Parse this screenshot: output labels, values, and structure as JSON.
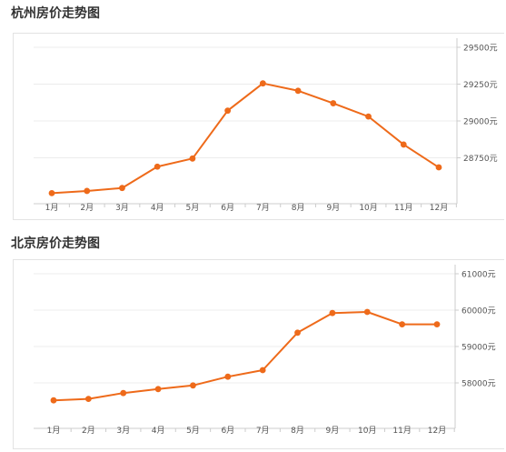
{
  "colors": {
    "line": "#ee6a1a",
    "grid": "#ececec",
    "axis": "#cccccc",
    "tick": "#555555",
    "heading": "#333333"
  },
  "chart_data": [
    {
      "type": "line",
      "title": "杭州房价走势图",
      "categories": [
        "1月",
        "2月",
        "3月",
        "4月",
        "5月",
        "6月",
        "7月",
        "8月",
        "9月",
        "10月",
        "11月",
        "12月"
      ],
      "series": [
        {
          "values": [
            28510,
            28525,
            28545,
            28690,
            28745,
            29070,
            29255,
            29205,
            29120,
            29030,
            28840,
            28685
          ]
        }
      ],
      "yticks": [
        28750,
        29000,
        29250,
        29500
      ],
      "ytick_labels": [
        "28750元",
        "29000元",
        "29250元",
        "29500元"
      ],
      "ylim": [
        28500,
        29500
      ],
      "y_axis_side": "right",
      "grid": true
    },
    {
      "type": "line",
      "title": "北京房价走势图",
      "categories": [
        "1月",
        "2月",
        "3月",
        "4月",
        "5月",
        "6月",
        "7月",
        "8月",
        "9月",
        "10月",
        "11月",
        "12月"
      ],
      "series": [
        {
          "values": [
            57520,
            57560,
            57720,
            57830,
            57930,
            58170,
            58350,
            59380,
            59920,
            59950,
            59610,
            59610
          ]
        }
      ],
      "yticks": [
        58000,
        59000,
        60000,
        61000
      ],
      "ytick_labels": [
        "58000元",
        "59000元",
        "60000元",
        "61000元"
      ],
      "ylim": [
        57000,
        61000
      ],
      "y_axis_side": "right",
      "grid": true
    }
  ]
}
